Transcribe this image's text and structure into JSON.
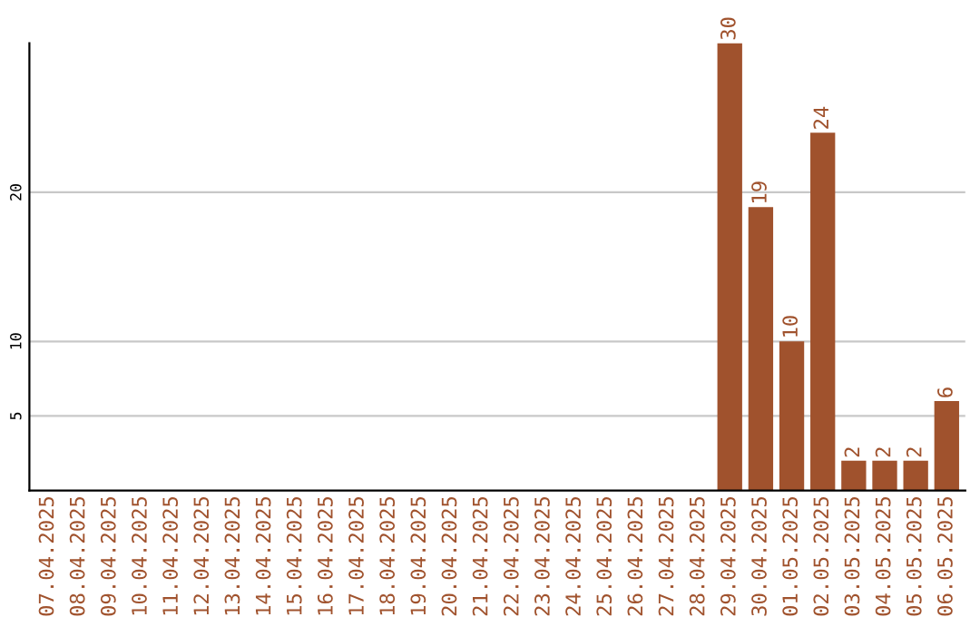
{
  "chart_data": {
    "type": "bar",
    "categories": [
      "07.04.2025",
      "08.04.2025",
      "09.04.2025",
      "10.04.2025",
      "11.04.2025",
      "12.04.2025",
      "13.04.2025",
      "14.04.2025",
      "15.04.2025",
      "16.04.2025",
      "17.04.2025",
      "18.04.2025",
      "19.04.2025",
      "20.04.2025",
      "21.04.2025",
      "22.04.2025",
      "23.04.2025",
      "24.04.2025",
      "25.04.2025",
      "26.04.2025",
      "27.04.2025",
      "28.04.2025",
      "29.04.2025",
      "30.04.2025",
      "01.05.2025",
      "02.05.2025",
      "03.05.2025",
      "04.05.2025",
      "05.05.2025",
      "06.05.2025"
    ],
    "values": [
      0,
      0,
      0,
      0,
      0,
      0,
      0,
      0,
      0,
      0,
      0,
      0,
      0,
      0,
      0,
      0,
      0,
      0,
      0,
      0,
      0,
      0,
      30,
      19,
      10,
      24,
      2,
      2,
      2,
      6
    ],
    "value_labels": [
      null,
      null,
      null,
      null,
      null,
      null,
      null,
      null,
      null,
      null,
      null,
      null,
      null,
      null,
      null,
      null,
      null,
      null,
      null,
      null,
      null,
      null,
      "30",
      "19",
      "10",
      "24",
      "2",
      "2",
      "2",
      "6"
    ],
    "color": "#a0522d",
    "ylim": [
      0,
      30
    ],
    "yticks": [
      5,
      10,
      20
    ],
    "grid": "y",
    "legend": false
  }
}
